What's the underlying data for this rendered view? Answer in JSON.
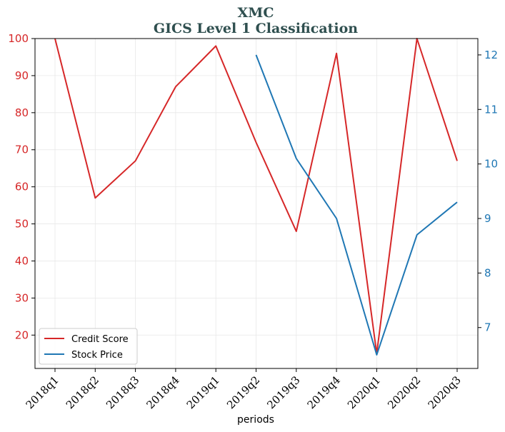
{
  "chart_data": {
    "type": "line",
    "title": "XMC",
    "subtitle": "GICS Level 1 Classification",
    "xlabel": "periods",
    "categories": [
      "2018q1",
      "2018q2",
      "2018q3",
      "2018q4",
      "2019q1",
      "2019q2",
      "2019q3",
      "2019q4",
      "2020q1",
      "2020q2",
      "2020q3"
    ],
    "y_left": {
      "ylim": [
        11,
        100
      ],
      "ticks": [
        20,
        30,
        40,
        50,
        60,
        70,
        80,
        90,
        100
      ],
      "color": "#d62728"
    },
    "y_right": {
      "ylim": [
        6.25,
        12.3
      ],
      "ticks": [
        7,
        8,
        9,
        10,
        11,
        12
      ],
      "color": "#1f77b4"
    },
    "series": [
      {
        "name": "Credit Score",
        "axis": "left",
        "color": "#d62728",
        "values": [
          100,
          57,
          67,
          87,
          98,
          72,
          48,
          96,
          15,
          100,
          67
        ]
      },
      {
        "name": "Stock Price",
        "axis": "right",
        "color": "#1f77b4",
        "values": [
          null,
          null,
          null,
          null,
          null,
          12.0,
          10.1,
          9.0,
          6.5,
          8.7,
          9.3
        ]
      }
    ],
    "grid": true,
    "legend": "lower-left"
  }
}
